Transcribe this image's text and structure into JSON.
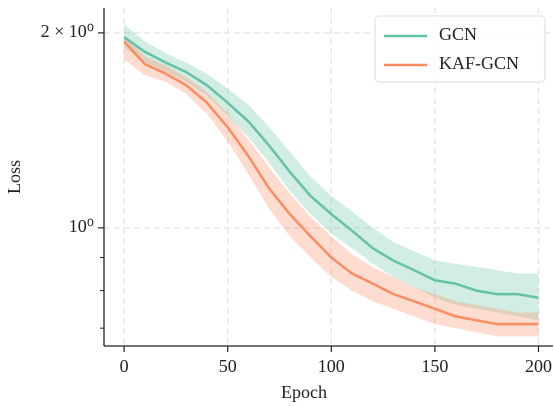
{
  "chart_data": {
    "type": "line",
    "xlabel": "Epoch",
    "ylabel": "Loss",
    "x": [
      0,
      10,
      20,
      30,
      40,
      50,
      60,
      70,
      80,
      90,
      100,
      110,
      120,
      130,
      140,
      150,
      160,
      170,
      180,
      190,
      200
    ],
    "xlim": [
      -9.7,
      207
    ],
    "xticks": [
      0,
      50,
      100,
      150,
      200
    ],
    "ylim": [
      0.657,
      2.185
    ],
    "yscale": "log",
    "yticks": [
      {
        "value": 1,
        "label": "10⁰"
      },
      {
        "value": 2,
        "label": "2 × 10⁰"
      }
    ],
    "yminorticks": [
      0.7,
      0.8,
      0.9
    ],
    "grid": true,
    "legend": "upper right",
    "series": [
      {
        "name": "GCN",
        "color": "#66c2a5",
        "values": [
          1.97,
          1.87,
          1.8,
          1.74,
          1.66,
          1.56,
          1.46,
          1.34,
          1.22,
          1.12,
          1.05,
          0.99,
          0.93,
          0.89,
          0.86,
          0.83,
          0.82,
          0.8,
          0.79,
          0.79,
          0.78
        ],
        "upper": [
          2.06,
          1.94,
          1.86,
          1.8,
          1.73,
          1.64,
          1.55,
          1.43,
          1.31,
          1.2,
          1.12,
          1.06,
          1.0,
          0.95,
          0.92,
          0.89,
          0.88,
          0.87,
          0.86,
          0.85,
          0.85
        ],
        "lower": [
          1.9,
          1.8,
          1.74,
          1.68,
          1.6,
          1.49,
          1.38,
          1.26,
          1.14,
          1.05,
          0.98,
          0.93,
          0.88,
          0.84,
          0.81,
          0.78,
          0.76,
          0.75,
          0.74,
          0.73,
          0.72
        ]
      },
      {
        "name": "KAF-GCN",
        "color": "#fc8d62",
        "values": [
          1.94,
          1.79,
          1.73,
          1.66,
          1.56,
          1.43,
          1.29,
          1.15,
          1.05,
          0.97,
          0.9,
          0.85,
          0.82,
          0.79,
          0.77,
          0.75,
          0.73,
          0.72,
          0.71,
          0.71,
          0.71
        ],
        "upper": [
          1.98,
          1.84,
          1.78,
          1.71,
          1.62,
          1.5,
          1.37,
          1.24,
          1.13,
          1.04,
          0.97,
          0.91,
          0.87,
          0.84,
          0.81,
          0.79,
          0.77,
          0.76,
          0.75,
          0.74,
          0.74
        ],
        "lower": [
          1.82,
          1.72,
          1.68,
          1.61,
          1.5,
          1.36,
          1.21,
          1.07,
          0.97,
          0.9,
          0.84,
          0.8,
          0.77,
          0.75,
          0.73,
          0.71,
          0.7,
          0.69,
          0.68,
          0.68,
          0.68
        ]
      }
    ]
  }
}
